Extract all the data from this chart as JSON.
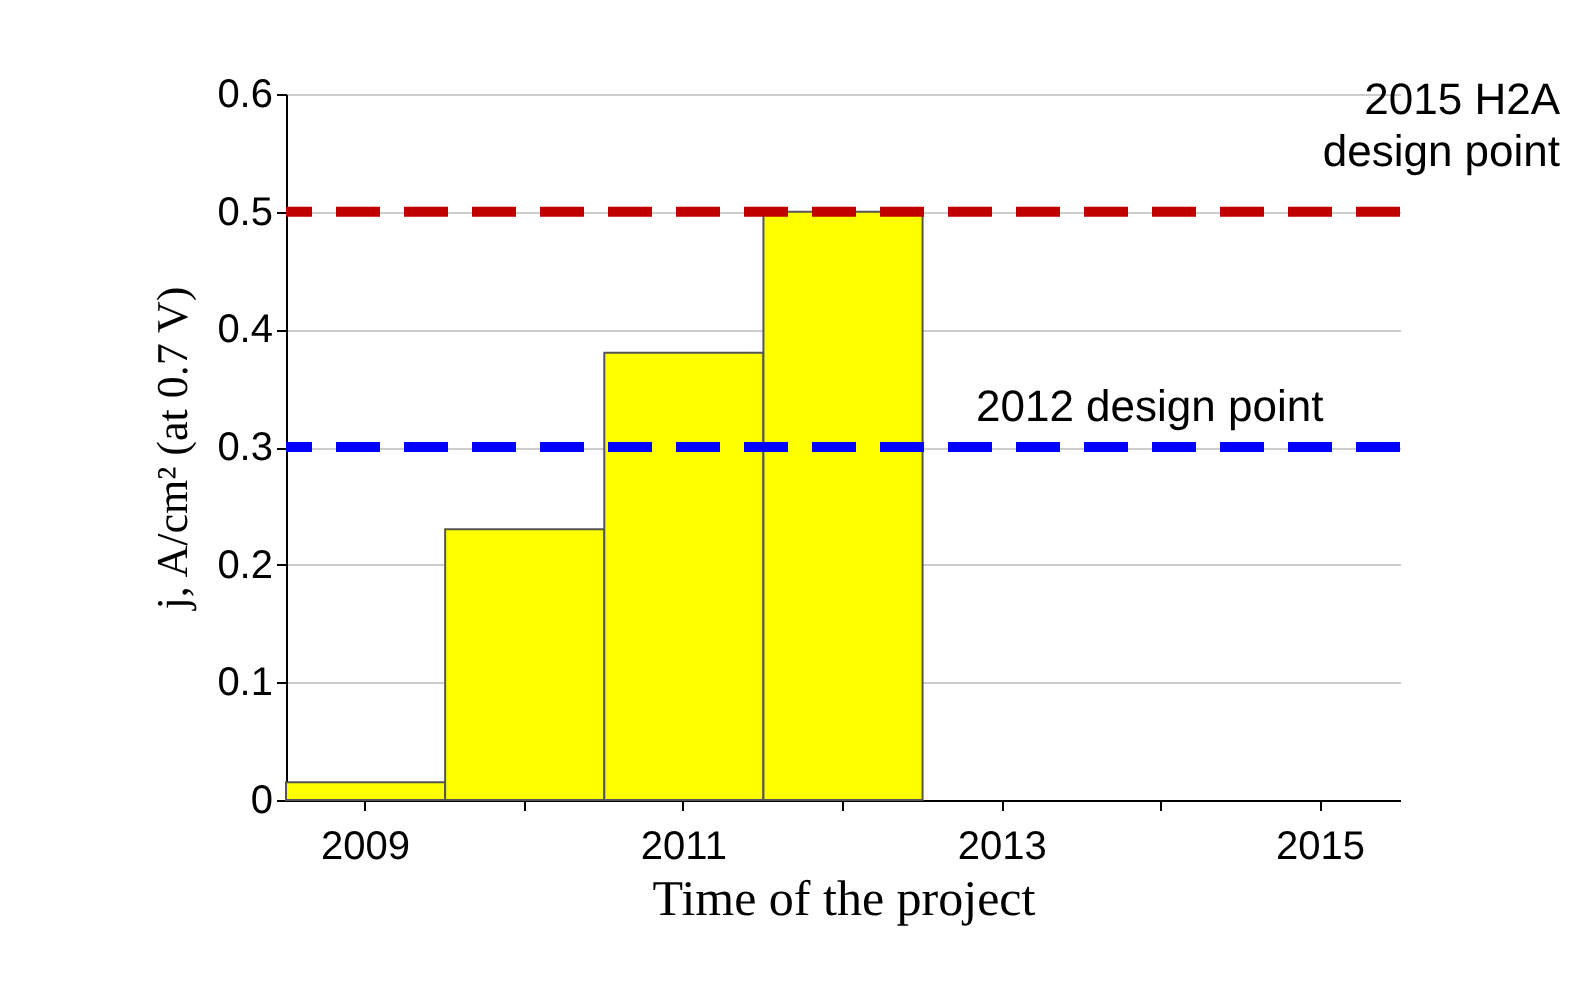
{
  "chart_data": {
    "type": "bar",
    "xlabel": "Time of the project",
    "ylabel": "j, A/cm² (at 0.7 V)",
    "categories": [
      "2009",
      null,
      "2011",
      null,
      "2013",
      null,
      "2015"
    ],
    "values": [
      0.015,
      0.23,
      0.38,
      0.5,
      null,
      null,
      null
    ],
    "color": "#ffff00",
    "ylim": [
      0,
      0.6
    ],
    "yticks": [
      0,
      0.1,
      0.2,
      0.3,
      0.4,
      0.5,
      0.6
    ],
    "grid": "y",
    "ref_lines": [
      {
        "axis": "y",
        "value": 0.5,
        "label": "2015 H2A design point",
        "color": "#c00000",
        "line_style": "dashed"
      },
      {
        "axis": "y",
        "value": 0.3,
        "label": "2012 design point",
        "color": "#0000ff",
        "line_style": "dashed"
      }
    ]
  }
}
